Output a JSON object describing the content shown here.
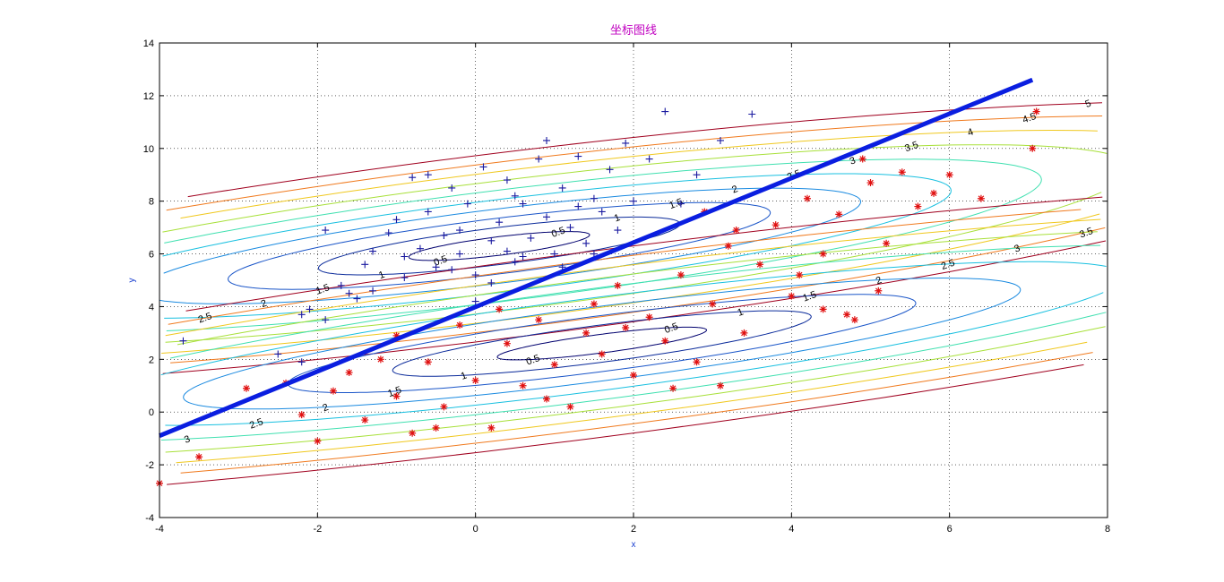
{
  "chart_data": {
    "type": "scatter",
    "title": "坐标图线",
    "xlabel": "x",
    "ylabel": "y",
    "xlim": [
      -4,
      8
    ],
    "ylim": [
      -4,
      14
    ],
    "xticks": [
      "-4",
      "-2",
      "0",
      "2",
      "4",
      "6",
      "8"
    ],
    "yticks": [
      "-4",
      "-2",
      "0",
      "2",
      "4",
      "6",
      "8",
      "10",
      "12",
      "14"
    ],
    "grid": true,
    "colors": {
      "class1_marker": "#1a1aa0",
      "class2_marker": "#e01010",
      "boundary_line": "#0a1ee0",
      "title": "#c000c0",
      "axis_label": "#1a3fd0"
    },
    "boundary_line": {
      "x": [
        -4,
        7.05
      ],
      "y": [
        -0.9,
        12.6
      ]
    },
    "contour_levels": [
      0.5,
      1,
      1.5,
      2,
      2.5,
      3,
      3.5,
      4,
      4.5,
      5
    ],
    "contour_labels": [
      "0.5",
      "1",
      "1.5",
      "2",
      "2.5",
      "3",
      "3.5",
      "4",
      "4.5",
      "5"
    ],
    "contour_colors": [
      "#00006e",
      "#0a2a9a",
      "#1a55c8",
      "#1a8ae0",
      "#19c0e0",
      "#40e0b0",
      "#a8e03a",
      "#f0c81e",
      "#f07a1e",
      "#a0001e"
    ],
    "gaussians": [
      {
        "name": "class1",
        "center": [
          0.3,
          6.3
        ],
        "axis_dir": [
          1.0,
          0.4
        ],
        "sigma_major": 2.45,
        "sigma_minor": 0.66
      },
      {
        "name": "class2",
        "center": [
          1.6,
          2.6
        ],
        "axis_dir": [
          1.0,
          0.41
        ],
        "sigma_major": 2.85,
        "sigma_minor": 0.66
      }
    ],
    "series": [
      {
        "marker": "+",
        "points": [
          [
            -3.7,
            2.7
          ],
          [
            -2.5,
            2.2
          ],
          [
            -2.2,
            1.9
          ],
          [
            -2.2,
            3.7
          ],
          [
            -2.1,
            3.9
          ],
          [
            -1.9,
            3.5
          ],
          [
            -1.9,
            6.9
          ],
          [
            -1.7,
            4.8
          ],
          [
            -1.5,
            4.3
          ],
          [
            -1.4,
            5.6
          ],
          [
            -1.3,
            6.1
          ],
          [
            -1.1,
            6.8
          ],
          [
            -1.0,
            7.3
          ],
          [
            -0.9,
            5.1
          ],
          [
            -0.8,
            8.9
          ],
          [
            -0.7,
            6.2
          ],
          [
            -0.6,
            7.6
          ],
          [
            -0.5,
            5.5
          ],
          [
            -0.4,
            6.7
          ],
          [
            -0.3,
            8.5
          ],
          [
            -0.2,
            6.0
          ],
          [
            -0.1,
            7.9
          ],
          [
            0.0,
            5.2
          ],
          [
            0.1,
            9.3
          ],
          [
            0.2,
            6.5
          ],
          [
            0.3,
            7.2
          ],
          [
            0.4,
            8.8
          ],
          [
            0.5,
            5.7
          ],
          [
            0.6,
            7.9
          ],
          [
            0.7,
            6.6
          ],
          [
            0.8,
            9.6
          ],
          [
            0.9,
            7.4
          ],
          [
            1.0,
            6.0
          ],
          [
            1.1,
            8.5
          ],
          [
            1.2,
            7.0
          ],
          [
            1.3,
            9.7
          ],
          [
            1.4,
            6.4
          ],
          [
            1.5,
            8.1
          ],
          [
            1.6,
            7.6
          ],
          [
            1.7,
            9.2
          ],
          [
            1.8,
            6.9
          ],
          [
            1.9,
            10.2
          ],
          [
            2.0,
            8.0
          ],
          [
            2.2,
            9.6
          ],
          [
            2.4,
            11.4
          ],
          [
            2.6,
            7.9
          ],
          [
            2.8,
            9.0
          ],
          [
            3.1,
            10.3
          ],
          [
            3.5,
            11.3
          ],
          [
            -1.6,
            4.5
          ],
          [
            -0.3,
            5.4
          ],
          [
            0.6,
            5.9
          ],
          [
            1.5,
            6.0
          ],
          [
            -0.6,
            9.0
          ],
          [
            0.9,
            10.3
          ],
          [
            0.0,
            4.2
          ],
          [
            -1.3,
            4.6
          ],
          [
            0.2,
            4.9
          ],
          [
            1.1,
            5.5
          ],
          [
            -0.2,
            6.9
          ],
          [
            0.5,
            8.2
          ],
          [
            1.3,
            7.8
          ],
          [
            -0.9,
            5.9
          ],
          [
            0.4,
            6.1
          ]
        ]
      },
      {
        "marker": "*",
        "points": [
          [
            -4.0,
            -2.7
          ],
          [
            -3.5,
            -1.7
          ],
          [
            -2.9,
            0.9
          ],
          [
            -2.4,
            1.1
          ],
          [
            -2.2,
            -0.1
          ],
          [
            -2.0,
            -1.1
          ],
          [
            -1.8,
            0.8
          ],
          [
            -1.6,
            1.5
          ],
          [
            -1.4,
            -0.3
          ],
          [
            -1.2,
            2.0
          ],
          [
            -1.0,
            0.6
          ],
          [
            -0.8,
            -0.8
          ],
          [
            -0.6,
            1.9
          ],
          [
            -0.4,
            0.2
          ],
          [
            -0.2,
            3.3
          ],
          [
            0.0,
            1.2
          ],
          [
            0.2,
            -0.6
          ],
          [
            0.4,
            2.6
          ],
          [
            0.6,
            1.0
          ],
          [
            0.8,
            3.5
          ],
          [
            1.0,
            1.8
          ],
          [
            1.2,
            0.2
          ],
          [
            1.4,
            3.0
          ],
          [
            1.6,
            2.2
          ],
          [
            1.8,
            4.8
          ],
          [
            2.0,
            1.4
          ],
          [
            2.2,
            3.6
          ],
          [
            2.4,
            2.7
          ],
          [
            2.6,
            5.2
          ],
          [
            2.8,
            1.9
          ],
          [
            3.0,
            4.1
          ],
          [
            3.2,
            6.3
          ],
          [
            3.4,
            3.0
          ],
          [
            3.6,
            5.6
          ],
          [
            3.8,
            7.1
          ],
          [
            4.0,
            4.4
          ],
          [
            4.2,
            8.1
          ],
          [
            4.4,
            6.0
          ],
          [
            4.6,
            7.5
          ],
          [
            4.8,
            3.5
          ],
          [
            5.0,
            8.7
          ],
          [
            5.2,
            6.4
          ],
          [
            5.4,
            9.1
          ],
          [
            5.6,
            7.8
          ],
          [
            5.8,
            8.3
          ],
          [
            6.0,
            9.0
          ],
          [
            6.4,
            8.1
          ],
          [
            7.05,
            10.0
          ],
          [
            7.1,
            11.4
          ],
          [
            3.1,
            1.0
          ],
          [
            4.4,
            3.9
          ],
          [
            4.7,
            3.7
          ],
          [
            -1.0,
            2.9
          ],
          [
            0.9,
            0.5
          ],
          [
            2.5,
            0.9
          ],
          [
            1.9,
            3.2
          ],
          [
            3.3,
            6.9
          ],
          [
            4.1,
            5.2
          ],
          [
            5.1,
            4.6
          ],
          [
            -0.5,
            -0.6
          ],
          [
            1.5,
            4.1
          ],
          [
            2.9,
            7.6
          ],
          [
            4.9,
            9.6
          ],
          [
            0.3,
            3.9
          ]
        ]
      }
    ]
  }
}
